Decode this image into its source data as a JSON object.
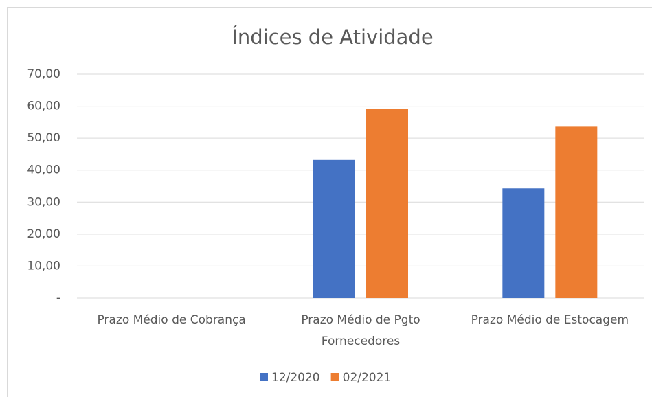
{
  "chart_data": {
    "type": "bar",
    "title": "Índices de Atividade",
    "categories": [
      "Prazo Médio de Cobrança",
      "Prazo Médio de Pgto Fornecedores",
      "Prazo Médio de Estocagem"
    ],
    "series": [
      {
        "name": "12/2020",
        "color": "#4472c4",
        "values": [
          0,
          43.2,
          34.3
        ]
      },
      {
        "name": "02/2021",
        "color": "#ed7d31",
        "values": [
          0,
          59.2,
          53.6
        ]
      }
    ],
    "ylim": [
      0,
      70
    ],
    "yticks": [
      {
        "value": 0,
        "label": "-"
      },
      {
        "value": 10,
        "label": "10,00"
      },
      {
        "value": 20,
        "label": "20,00"
      },
      {
        "value": 30,
        "label": "30,00"
      },
      {
        "value": 40,
        "label": "40,00"
      },
      {
        "value": 50,
        "label": "50,00"
      },
      {
        "value": 60,
        "label": "60,00"
      },
      {
        "value": 70,
        "label": "70,00"
      }
    ],
    "grid": true,
    "legend": "bottom"
  }
}
